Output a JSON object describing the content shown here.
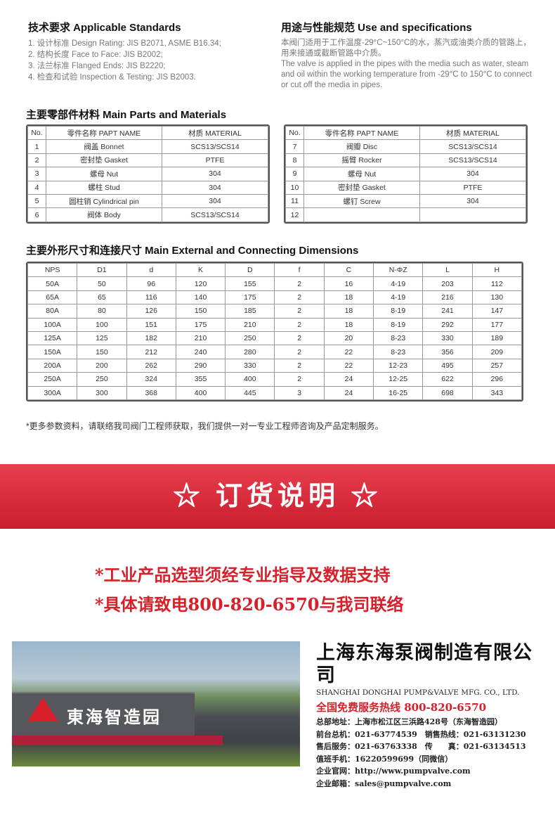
{
  "standards": {
    "title": "技术要求 Applicable Standards",
    "items": [
      "1. 设计标准 Design Rating: JIS B2071, ASME B16.34;",
      "2. 结构长度 Face to Face: JIS B2002;",
      "3. 法兰标准 Flanged Ends: JIS B2220;",
      "4. 检查和试验 Inspection & Testing: JIS B2003."
    ]
  },
  "use": {
    "title": "用途与性能规范 Use and specifications",
    "cn": "本阀门适用于工作温度-29°C~150°C的水，蒸汽或油类介质的管路上，用来接通或截断管路中介质。",
    "en": "The valve is applied in the pipes with the media such as water, steam and oil within the working temperature from -29°C to 150°C to connect or cut off the media in pipes."
  },
  "parts": {
    "title": "主要零部件材料 Main Parts and Materials",
    "headers": [
      "No.",
      "零件名称 PAPT NAME",
      "材质 MATERIAL"
    ],
    "left": [
      [
        "1",
        "阀盖 Bonnet",
        "SCS13/SCS14"
      ],
      [
        "2",
        "密封垫 Gasket",
        "PTFE"
      ],
      [
        "3",
        "螺母 Nut",
        "304"
      ],
      [
        "4",
        "螺柱 Stud",
        "304"
      ],
      [
        "5",
        "圆柱销 Cylindrical pin",
        "304"
      ],
      [
        "6",
        "阀体 Body",
        "SCS13/SCS14"
      ]
    ],
    "right": [
      [
        "7",
        "阀瓣 Disc",
        "SCS13/SCS14"
      ],
      [
        "8",
        "摇臂 Rocker",
        "SCS13/SCS14"
      ],
      [
        "9",
        "螺母 Nut",
        "304"
      ],
      [
        "10",
        "密封垫 Gasket",
        "PTFE"
      ],
      [
        "11",
        "螺钉 Screw",
        "304"
      ],
      [
        "12",
        "",
        ""
      ]
    ]
  },
  "dims": {
    "title": "主要外形尺寸和连接尺寸 Main External and Connecting Dimensions",
    "headers": [
      "NPS",
      "D1",
      "d",
      "K",
      "D",
      "f",
      "C",
      "N-ΦZ",
      "L",
      "H"
    ],
    "rows": [
      [
        "50A",
        "50",
        "96",
        "120",
        "155",
        "2",
        "16",
        "4-19",
        "203",
        "112"
      ],
      [
        "65A",
        "65",
        "116",
        "140",
        "175",
        "2",
        "18",
        "4-19",
        "216",
        "130"
      ],
      [
        "80A",
        "80",
        "126",
        "150",
        "185",
        "2",
        "18",
        "8-19",
        "241",
        "147"
      ],
      [
        "100A",
        "100",
        "151",
        "175",
        "210",
        "2",
        "18",
        "8-19",
        "292",
        "177"
      ],
      [
        "125A",
        "125",
        "182",
        "210",
        "250",
        "2",
        "20",
        "8-23",
        "330",
        "189"
      ],
      [
        "150A",
        "150",
        "212",
        "240",
        "280",
        "2",
        "22",
        "8-23",
        "356",
        "209"
      ],
      [
        "200A",
        "200",
        "262",
        "290",
        "330",
        "2",
        "22",
        "12-23",
        "495",
        "257"
      ],
      [
        "250A",
        "250",
        "324",
        "355",
        "400",
        "2",
        "24",
        "12-25",
        "622",
        "296"
      ],
      [
        "300A",
        "300",
        "368",
        "400",
        "445",
        "3",
        "24",
        "16-25",
        "698",
        "343"
      ]
    ]
  },
  "note": "*更多参数资料，请联络我司阀门工程师获取，我们提供一对一专业工程师咨询及产品定制服务。",
  "banner": "☆ 订货说明 ☆",
  "order": [
    "*工业产品选型须经专业指导及数据支持",
    "*具体请致电800-820-6570与我司联络"
  ],
  "photo": {
    "sign": "東海智造园"
  },
  "company": {
    "name_cn": "上海东海泵阀制造有限公司",
    "name_en": "SHANGHAI DONGHAI PUMP&VALVE MFG. CO., LTD.",
    "hotline": "全国免费服务热线 800-820-6570",
    "lines": [
      "总部地址：上海市松江区三浜路428号（东海智造园）",
      "前台总机：021-63774539　销售热线：021-63131230",
      "售后服务：021-63763338　传　　真：021-63134513",
      "值班手机：16220599699（同微信）",
      "企业官网：http://www.pumpvalve.com",
      "企业邮箱：sales@pumpvalve.com"
    ]
  },
  "colors": {
    "accent": "#d8202a"
  }
}
